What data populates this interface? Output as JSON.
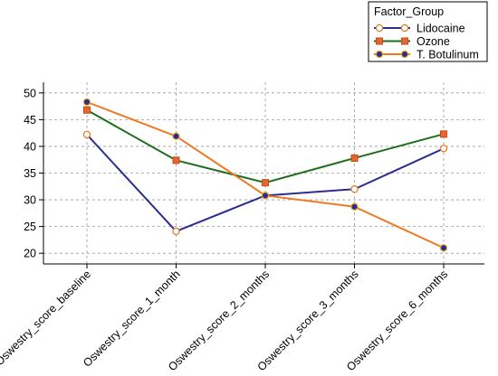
{
  "chart_data": {
    "type": "line",
    "categories": [
      "Oswestry_score_baseline",
      "Oswestry_score_1_month",
      "Oswestry_score_2_months",
      "Oswestry_score_3_months",
      "Oswestry_score_6_months"
    ],
    "ylim": [
      18,
      52
    ],
    "yticks": [
      20,
      25,
      30,
      35,
      40,
      45,
      50
    ],
    "grid": true,
    "legend": {
      "title": "Factor_Group",
      "placement": "top-right"
    },
    "series": [
      {
        "name": "Lidocaine",
        "values": [
          42.2,
          24.1,
          30.8,
          32.0,
          39.6
        ],
        "line_color": "#2e2e8f",
        "marker": "circle",
        "marker_fill": "#ffffff",
        "marker_edge": "#e8771e"
      },
      {
        "name": "Ozone",
        "values": [
          46.8,
          37.4,
          33.2,
          37.8,
          42.3
        ],
        "line_color": "#1e6e1e",
        "marker": "square",
        "marker_fill": "#e8662e",
        "marker_edge": "#c04a1a"
      },
      {
        "name": "T. Botulinum",
        "values": [
          48.3,
          41.9,
          30.8,
          28.7,
          21.0
        ],
        "line_color": "#f07820",
        "marker": "circle",
        "marker_fill": "#2a2a9a",
        "marker_edge": "#e8b020"
      }
    ]
  }
}
